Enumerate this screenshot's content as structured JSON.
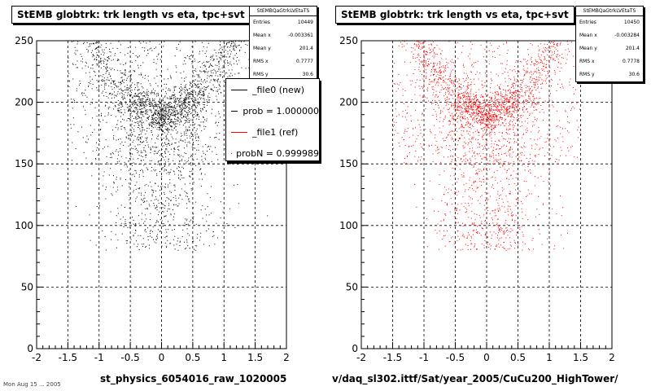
{
  "footer": "Mon Aug 15 ... 2005",
  "chart_data": [
    {
      "type": "scatter",
      "title": "StEMB globtrk: trk length vs eta, tpc+svt",
      "xlabel": "st_physics_6054016_raw_1020005",
      "xlim": [
        -2,
        2
      ],
      "ylim": [
        0,
        250
      ],
      "xticks": [
        "-2",
        "-1.5",
        "-1",
        "-0.5",
        "0",
        "0.5",
        "1",
        "1.5",
        "2"
      ],
      "yticks": [
        "0",
        "50",
        "100",
        "150",
        "200",
        "250"
      ],
      "grid": true,
      "point_color": "#000000",
      "seed": 7,
      "stats": {
        "name": "StEMBQaGtrkLVEtaTS",
        "rows": [
          {
            "label": "Entries",
            "value": "10449"
          },
          {
            "label": "Mean x",
            "value": "-0.003361"
          },
          {
            "label": "Mean y",
            "value": "201.4"
          },
          {
            "label": "RMS x",
            "value": "0.7777"
          },
          {
            "label": "RMS y",
            "value": "30.6"
          }
        ]
      },
      "legend": {
        "placement": "top-right",
        "entries": [
          {
            "label": "_file0 (new)",
            "color": "#000000"
          },
          {
            "label": "prob = 1.000000",
            "color": "#000000"
          },
          {
            "label": "_file1 (ref)",
            "color": "#ff0000"
          },
          {
            "label": "probN = 0.999989",
            "color": "#ff0000"
          }
        ]
      }
    },
    {
      "type": "scatter",
      "title": "StEMB globtrk: trk length vs eta, tpc+svt",
      "xlabel": "v/daq_sl302.ittf/Sat/year_2005/CuCu200_HighTower/",
      "xlim": [
        -2,
        2
      ],
      "ylim": [
        0,
        250
      ],
      "xticks": [
        "-2",
        "-1.5",
        "-1",
        "-0.5",
        "0",
        "0.5",
        "1",
        "1.5",
        "2"
      ],
      "yticks": [
        "0",
        "50",
        "100",
        "150",
        "200",
        "250"
      ],
      "grid": true,
      "point_color": "#ff0000",
      "seed": 19,
      "stats": {
        "name": "StEMBQaGtrkLVEtaTS",
        "rows": [
          {
            "label": "Entries",
            "value": "10450"
          },
          {
            "label": "Mean x",
            "value": "-0.003284"
          },
          {
            "label": "Mean y",
            "value": "201.4"
          },
          {
            "label": "RMS x",
            "value": "0.7778"
          },
          {
            "label": "RMS y",
            "value": "30.6"
          }
        ]
      }
    }
  ]
}
